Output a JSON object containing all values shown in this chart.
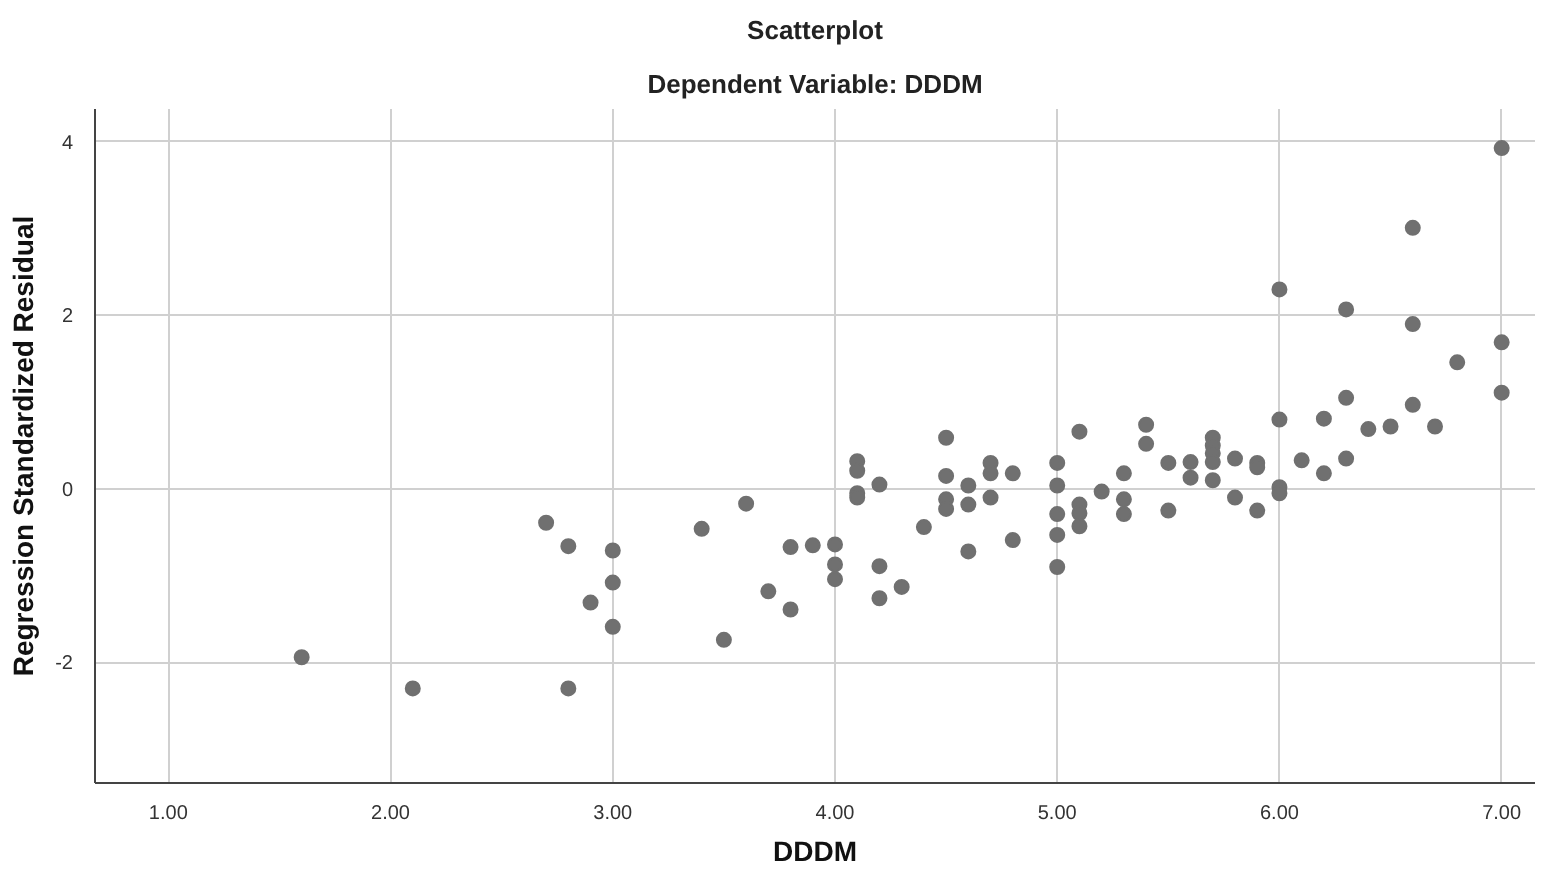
{
  "chart_data": {
    "type": "scatter",
    "title": "Scatterplot",
    "subtitle": "Dependent Variable: DDDM",
    "xlabel": "DDDM",
    "ylabel": "Regression Standardized Residual",
    "x": [
      1.6,
      2.1,
      2.7,
      2.8,
      2.8,
      2.9,
      3.0,
      3.0,
      3.0,
      3.4,
      3.5,
      3.6,
      3.7,
      3.8,
      3.8,
      3.9,
      4.0,
      4.0,
      4.0,
      4.1,
      4.1,
      4.1,
      4.1,
      4.2,
      4.2,
      4.2,
      4.3,
      4.4,
      4.5,
      4.5,
      4.5,
      4.5,
      4.6,
      4.6,
      4.6,
      4.7,
      4.7,
      4.7,
      4.8,
      4.8,
      5.0,
      5.0,
      5.0,
      5.0,
      5.0,
      5.1,
      5.1,
      5.1,
      5.1,
      5.2,
      5.3,
      5.3,
      5.3,
      5.4,
      5.4,
      5.5,
      5.5,
      5.6,
      5.6,
      5.7,
      5.7,
      5.7,
      5.7,
      5.7,
      5.8,
      5.8,
      5.9,
      5.9,
      5.9,
      6.0,
      6.0,
      6.0,
      6.0,
      6.1,
      6.2,
      6.2,
      6.3,
      6.3,
      6.3,
      6.4,
      6.5,
      6.6,
      6.6,
      6.6,
      6.7,
      6.8,
      7.0,
      7.0,
      7.0
    ],
    "values": [
      -1.94,
      -2.3,
      -0.39,
      -0.66,
      -2.3,
      -1.31,
      -0.71,
      -1.08,
      -1.59,
      -0.46,
      -1.74,
      -0.17,
      -1.18,
      -0.67,
      -1.39,
      -0.65,
      -0.64,
      -0.87,
      -1.04,
      0.32,
      0.21,
      -0.05,
      -0.1,
      0.05,
      -0.89,
      -1.26,
      -1.13,
      -0.44,
      0.59,
      0.15,
      -0.12,
      -0.23,
      0.04,
      -0.18,
      -0.72,
      0.3,
      0.18,
      -0.1,
      0.18,
      -0.59,
      0.3,
      0.04,
      -0.29,
      -0.53,
      -0.9,
      0.66,
      -0.18,
      -0.28,
      -0.43,
      -0.03,
      0.18,
      -0.12,
      -0.29,
      0.74,
      0.52,
      0.3,
      -0.25,
      0.31,
      0.13,
      0.59,
      0.5,
      0.41,
      0.31,
      0.1,
      0.35,
      -0.1,
      0.3,
      0.25,
      -0.25,
      2.3,
      0.8,
      0.02,
      -0.05,
      0.33,
      0.81,
      0.18,
      2.07,
      1.05,
      0.35,
      0.69,
      0.72,
      3.01,
      1.9,
      0.97,
      0.72,
      1.46,
      3.93,
      1.69,
      1.11
    ],
    "color": "#707070",
    "marker": "circle",
    "xlim": [
      0.67,
      7.15
    ],
    "ylim": [
      -3.39,
      4.38
    ],
    "xticks": [
      {
        "value": 1,
        "label": "1.00"
      },
      {
        "value": 2,
        "label": "2.00"
      },
      {
        "value": 3,
        "label": "3.00"
      },
      {
        "value": 4,
        "label": "4.00"
      },
      {
        "value": 5,
        "label": "5.00"
      },
      {
        "value": 6,
        "label": "6.00"
      },
      {
        "value": 7,
        "label": "7.00"
      }
    ],
    "yticks": [
      -2,
      0,
      2,
      4
    ],
    "grid": true
  }
}
